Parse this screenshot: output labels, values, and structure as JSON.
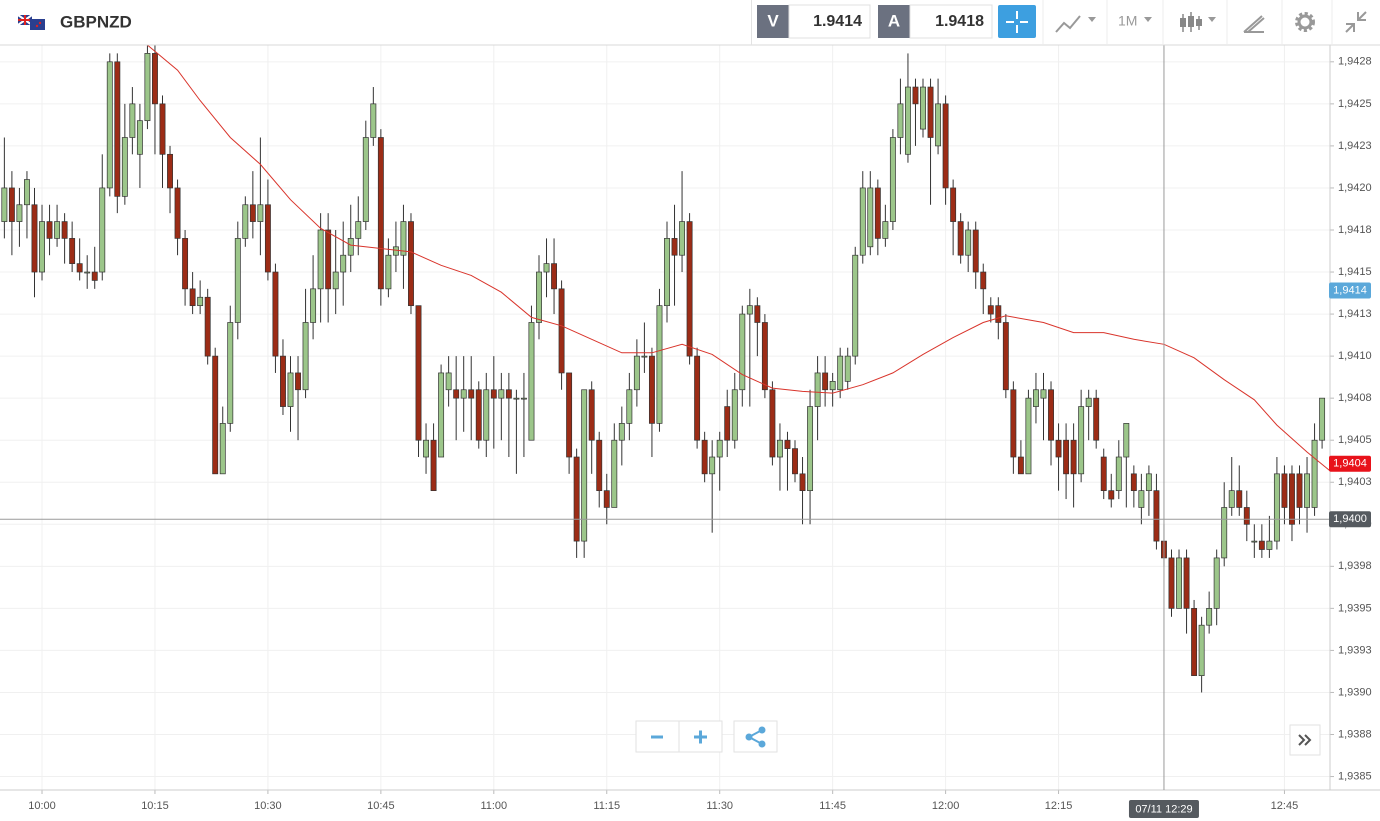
{
  "toolbar": {
    "symbol": "GBPNZD",
    "sell_label": "V",
    "sell_price": "1.9414",
    "buy_label": "A",
    "buy_price": "1.9418",
    "timeframe": "1M"
  },
  "chart_data": {
    "type": "candlestick",
    "up_color": "#9cc68a",
    "down_color": "#9c2c16",
    "grid": true,
    "xlim": [
      594.42,
      771.05
    ],
    "xticks": [
      {
        "value": 600,
        "label": "10:00"
      },
      {
        "value": 615,
        "label": "10:15"
      },
      {
        "value": 630,
        "label": "10:30"
      },
      {
        "value": 645,
        "label": "10:45"
      },
      {
        "value": 660,
        "label": "11:00"
      },
      {
        "value": 675,
        "label": "11:15"
      },
      {
        "value": 690,
        "label": "11:30"
      },
      {
        "value": 705,
        "label": "11:45"
      },
      {
        "value": 720,
        "label": "12:00"
      },
      {
        "value": 735,
        "label": "12:15"
      },
      {
        "value": 765,
        "label": "12:45"
      }
    ],
    "ylim": [
      1.93842,
      1.94285
    ],
    "yticks": [
      {
        "value": 1.94275,
        "label": "1,9428"
      },
      {
        "value": 1.9425,
        "label": "1,9425"
      },
      {
        "value": 1.94225,
        "label": "1,9423"
      },
      {
        "value": 1.942,
        "label": "1,9420"
      },
      {
        "value": 1.94175,
        "label": "1,9418"
      },
      {
        "value": 1.9415,
        "label": "1,9415"
      },
      {
        "value": 1.94125,
        "label": "1,9413"
      },
      {
        "value": 1.941,
        "label": "1,9410"
      },
      {
        "value": 1.94075,
        "label": "1,9408"
      },
      {
        "value": 1.9405,
        "label": "1,9405"
      },
      {
        "value": 1.94025,
        "label": "1,9403"
      },
      {
        "value": 1.94,
        "label": "1,9400"
      },
      {
        "value": 1.93975,
        "label": "1,9398"
      },
      {
        "value": 1.9395,
        "label": "1,9395"
      },
      {
        "value": 1.93925,
        "label": "1,9393"
      },
      {
        "value": 1.939,
        "label": "1,9390"
      },
      {
        "value": 1.93875,
        "label": "1,9388"
      },
      {
        "value": 1.9385,
        "label": "1,9385"
      }
    ],
    "x": [
      595,
      596,
      597,
      598,
      599,
      600,
      601,
      602,
      603,
      604,
      605,
      606,
      607,
      608,
      609,
      610,
      611,
      612,
      613,
      614,
      615,
      616,
      617,
      618,
      619,
      620,
      621,
      622,
      623,
      624,
      625,
      626,
      627,
      628,
      629,
      630,
      631,
      632,
      633,
      634,
      635,
      636,
      637,
      638,
      639,
      640,
      641,
      642,
      643,
      644,
      645,
      646,
      647,
      648,
      649,
      650,
      651,
      652,
      653,
      654,
      655,
      656,
      657,
      658,
      659,
      660,
      661,
      662,
      663,
      664,
      665,
      666,
      667,
      668,
      669,
      670,
      671,
      672,
      673,
      674,
      675,
      676,
      677,
      678,
      679,
      680,
      681,
      682,
      683,
      684,
      685,
      686,
      687,
      688,
      689,
      690,
      691,
      692,
      693,
      694,
      695,
      696,
      697,
      698,
      699,
      700,
      701,
      702,
      703,
      704,
      705,
      706,
      707,
      708,
      709,
      710,
      711,
      712,
      713,
      714,
      715,
      716,
      717,
      718,
      719,
      720,
      721,
      722,
      723,
      724,
      725,
      726,
      727,
      728,
      729,
      730,
      731,
      732,
      733,
      734,
      735,
      736,
      737,
      738,
      739,
      740,
      741,
      742,
      743,
      744,
      745,
      746,
      747,
      748,
      749,
      750,
      751,
      752,
      753,
      754,
      755,
      756,
      757,
      758,
      759,
      760,
      761,
      762,
      763,
      764,
      765,
      766,
      767,
      768,
      769,
      770
    ],
    "open": [
      1.9418,
      1.942,
      1.9418,
      1.9419,
      1.9419,
      1.9415,
      1.9418,
      1.9417,
      1.9418,
      1.9417,
      1.94155,
      1.9415,
      1.9415,
      1.9415,
      1.942,
      1.94275,
      1.94195,
      1.9423,
      1.9422,
      1.9424,
      1.9428,
      1.9425,
      1.9422,
      1.942,
      1.9417,
      1.9414,
      1.9413,
      1.94135,
      1.941,
      1.9403,
      1.9406,
      1.9412,
      1.9417,
      1.9419,
      1.9418,
      1.9419,
      1.9415,
      1.941,
      1.9407,
      1.9409,
      1.9408,
      1.9412,
      1.9414,
      1.94175,
      1.9414,
      1.9415,
      1.9416,
      1.9417,
      1.9418,
      1.9423,
      1.9423,
      1.9414,
      1.9416,
      1.9416,
      1.9418,
      1.9413,
      1.9404,
      1.9405,
      1.9404,
      1.9408,
      1.9408,
      1.94075,
      1.9408,
      1.9408,
      1.9405,
      1.9408,
      1.94075,
      1.9408,
      1.94075,
      1.94075,
      1.9405,
      1.9412,
      1.9415,
      1.94155,
      1.9414,
      1.9409,
      1.9404,
      1.9399,
      1.9408,
      1.9405,
      1.9402,
      1.9401,
      1.9405,
      1.9406,
      1.9408,
      1.941,
      1.941,
      1.9406,
      1.9413,
      1.9417,
      1.9416,
      1.9418,
      1.941,
      1.9405,
      1.9403,
      1.9404,
      1.9407,
      1.9405,
      1.9408,
      1.94125,
      1.9413,
      1.9412,
      1.9408,
      1.9404,
      1.9405,
      1.94045,
      1.9403,
      1.9402,
      1.9407,
      1.9409,
      1.9408,
      1.9408,
      1.94085,
      1.941,
      1.9416,
      1.94165,
      1.942,
      1.9417,
      1.9418,
      1.9423,
      1.9422,
      1.9426,
      1.94235,
      1.9426,
      1.94225,
      1.9425,
      1.942,
      1.9418,
      1.9416,
      1.94175,
      1.9415,
      1.9413,
      1.9413,
      1.9412,
      1.9408,
      1.9404,
      1.9403,
      1.9407,
      1.94075,
      1.9408,
      1.9405,
      1.9405,
      1.9405,
      1.9403,
      1.9407,
      1.94075,
      1.9404,
      1.9402,
      1.9402,
      1.9404,
      1.9403,
      1.9401,
      1.9402,
      1.9402,
      1.9399,
      1.9398,
      1.9395,
      1.9398,
      1.9395,
      1.9391,
      1.9394,
      1.9395,
      1.9398,
      1.9401,
      1.9402,
      1.9401,
      1.9399,
      1.9399,
      1.93985,
      1.9399,
      1.9403,
      1.9403,
      1.9403,
      1.9401,
      1.9401,
      1.9405
    ],
    "high": [
      1.9423,
      1.9421,
      1.942,
      1.9421,
      1.942,
      1.9419,
      1.9419,
      1.9419,
      1.94185,
      1.9418,
      1.9417,
      1.9416,
      1.94165,
      1.9422,
      1.9428,
      1.9428,
      1.9425,
      1.9426,
      1.9425,
      1.94285,
      1.94285,
      1.94255,
      1.94225,
      1.94205,
      1.94175,
      1.9415,
      1.94145,
      1.9414,
      1.94105,
      1.9407,
      1.9413,
      1.9418,
      1.94195,
      1.9421,
      1.9423,
      1.94205,
      1.94155,
      1.9411,
      1.941,
      1.941,
      1.9414,
      1.9416,
      1.94185,
      1.94185,
      1.94175,
      1.9418,
      1.9419,
      1.94195,
      1.9424,
      1.9426,
      1.94235,
      1.9417,
      1.9418,
      1.9419,
      1.94185,
      1.9413,
      1.9406,
      1.9406,
      1.94095,
      1.941,
      1.941,
      1.941,
      1.941,
      1.94085,
      1.9409,
      1.941,
      1.9409,
      1.9409,
      1.9408,
      1.9409,
      1.9413,
      1.9416,
      1.9417,
      1.9417,
      1.94145,
      1.9409,
      1.94045,
      1.9408,
      1.94085,
      1.94055,
      1.9403,
      1.9406,
      1.9407,
      1.9409,
      1.9411,
      1.9412,
      1.94105,
      1.9414,
      1.9418,
      1.9419,
      1.9421,
      1.94185,
      1.94105,
      1.94055,
      1.9405,
      1.94055,
      1.9408,
      1.9409,
      1.9413,
      1.9414,
      1.94135,
      1.94125,
      1.94085,
      1.9406,
      1.94055,
      1.9405,
      1.9404,
      1.9408,
      1.941,
      1.941,
      1.9409,
      1.94105,
      1.94105,
      1.94165,
      1.9421,
      1.9421,
      1.94205,
      1.9419,
      1.94235,
      1.94265,
      1.9428,
      1.94265,
      1.94265,
      1.94265,
      1.94265,
      1.94255,
      1.94205,
      1.94185,
      1.9418,
      1.9418,
      1.94155,
      1.94135,
      1.94135,
      1.94125,
      1.94085,
      1.9405,
      1.9408,
      1.9409,
      1.9409,
      1.94085,
      1.9406,
      1.9406,
      1.9406,
      1.9408,
      1.9408,
      1.9408,
      1.94045,
      1.9403,
      1.9405,
      1.9406,
      1.94035,
      1.9403,
      1.94035,
      1.9403,
      1.94,
      1.93985,
      1.93985,
      1.93985,
      1.93955,
      1.93945,
      1.9396,
      1.93985,
      1.94025,
      1.9404,
      1.94035,
      1.9402,
      1.94,
      1.94,
      1.94005,
      1.9404,
      1.94035,
      1.94035,
      1.94035,
      1.9404,
      1.9406,
      1.94075
    ],
    "low": [
      1.9417,
      1.9416,
      1.94165,
      1.9417,
      1.94135,
      1.94145,
      1.9416,
      1.94165,
      1.94155,
      1.9415,
      1.94145,
      1.9414,
      1.9414,
      1.94145,
      1.94195,
      1.94185,
      1.9419,
      1.9422,
      1.942,
      1.94235,
      1.9422,
      1.942,
      1.94185,
      1.9416,
      1.9413,
      1.94125,
      1.94125,
      1.94095,
      1.9403,
      1.9403,
      1.94055,
      1.9411,
      1.94165,
      1.9417,
      1.9416,
      1.94145,
      1.9409,
      1.94065,
      1.94055,
      1.9405,
      1.94075,
      1.9411,
      1.9412,
      1.9412,
      1.94125,
      1.9413,
      1.9415,
      1.9416,
      1.94175,
      1.94225,
      1.9413,
      1.94135,
      1.9415,
      1.9414,
      1.94125,
      1.9404,
      1.9403,
      1.9402,
      1.9404,
      1.9407,
      1.9405,
      1.94055,
      1.9405,
      1.94045,
      1.9404,
      1.94045,
      1.9405,
      1.9404,
      1.9403,
      1.9404,
      1.9405,
      1.9411,
      1.94135,
      1.94125,
      1.9408,
      1.9403,
      1.9398,
      1.9398,
      1.9403,
      1.9401,
      1.94,
      1.9401,
      1.94035,
      1.9405,
      1.9407,
      1.9409,
      1.9404,
      1.94055,
      1.9412,
      1.9413,
      1.9415,
      1.94095,
      1.94045,
      1.94025,
      1.93995,
      1.9402,
      1.9404,
      1.94045,
      1.9407,
      1.9407,
      1.941,
      1.94075,
      1.94035,
      1.9402,
      1.9402,
      1.94025,
      1.94,
      1.94,
      1.9405,
      1.9407,
      1.9407,
      1.94075,
      1.9408,
      1.94095,
      1.94155,
      1.9416,
      1.9416,
      1.94165,
      1.94175,
      1.9422,
      1.94215,
      1.94225,
      1.9423,
      1.9419,
      1.9422,
      1.9419,
      1.9416,
      1.94155,
      1.9415,
      1.9414,
      1.94125,
      1.9412,
      1.9411,
      1.94075,
      1.9403,
      1.9403,
      1.9403,
      1.9406,
      1.9405,
      1.94035,
      1.9402,
      1.94015,
      1.9401,
      1.94025,
      1.9405,
      1.94045,
      1.94015,
      1.9401,
      1.94015,
      1.9401,
      1.9401,
      1.94,
      1.94005,
      1.93985,
      1.93975,
      1.93945,
      1.9395,
      1.93935,
      1.9391,
      1.939,
      1.93935,
      1.9394,
      1.93975,
      1.94005,
      1.94005,
      1.9399,
      1.9398,
      1.9398,
      1.9398,
      1.93985,
      1.94,
      1.9399,
      1.94,
      1.93995,
      1.94005,
      1.94045
    ],
    "close": [
      1.942,
      1.9418,
      1.9419,
      1.94205,
      1.9415,
      1.9418,
      1.9417,
      1.9418,
      1.9417,
      1.94155,
      1.9415,
      1.9415,
      1.94145,
      1.942,
      1.94275,
      1.94195,
      1.9423,
      1.9425,
      1.9424,
      1.9428,
      1.9425,
      1.9422,
      1.942,
      1.9417,
      1.9414,
      1.9413,
      1.94135,
      1.941,
      1.9403,
      1.9406,
      1.9412,
      1.9417,
      1.9419,
      1.9418,
      1.9419,
      1.9415,
      1.941,
      1.9407,
      1.9409,
      1.9408,
      1.9412,
      1.9414,
      1.94175,
      1.9414,
      1.9415,
      1.9416,
      1.9417,
      1.9418,
      1.9423,
      1.9425,
      1.9414,
      1.9416,
      1.94165,
      1.9418,
      1.9413,
      1.9405,
      1.9405,
      1.9402,
      1.9409,
      1.9409,
      1.94075,
      1.9408,
      1.94075,
      1.9405,
      1.9408,
      1.94075,
      1.9408,
      1.94075,
      1.94075,
      1.94075,
      1.9412,
      1.9415,
      1.94155,
      1.9414,
      1.9409,
      1.9404,
      1.9399,
      1.9408,
      1.9405,
      1.9402,
      1.9401,
      1.9405,
      1.9406,
      1.9408,
      1.941,
      1.941,
      1.9406,
      1.9413,
      1.9417,
      1.9416,
      1.9418,
      1.941,
      1.9405,
      1.9403,
      1.9404,
      1.9405,
      1.9405,
      1.9408,
      1.94125,
      1.9413,
      1.9412,
      1.9408,
      1.9404,
      1.9405,
      1.94045,
      1.9403,
      1.9402,
      1.9407,
      1.9409,
      1.9408,
      1.94085,
      1.941,
      1.941,
      1.9416,
      1.942,
      1.942,
      1.9417,
      1.9418,
      1.9423,
      1.9425,
      1.9426,
      1.9425,
      1.9426,
      1.9423,
      1.9425,
      1.942,
      1.9418,
      1.9416,
      1.94175,
      1.9415,
      1.9414,
      1.94125,
      1.9412,
      1.9408,
      1.9404,
      1.9403,
      1.94075,
      1.9408,
      1.9408,
      1.9405,
      1.9404,
      1.9403,
      1.9403,
      1.9407,
      1.94075,
      1.9405,
      1.9402,
      1.94015,
      1.9404,
      1.9406,
      1.9402,
      1.9402,
      1.9403,
      1.9399,
      1.9398,
      1.9395,
      1.9398,
      1.9395,
      1.9391,
      1.9394,
      1.9395,
      1.9398,
      1.9401,
      1.9402,
      1.9401,
      1.94,
      1.9399,
      1.93985,
      1.9399,
      1.9403,
      1.9401,
      1.94,
      1.9401,
      1.9403,
      1.9405,
      1.94075
    ],
    "ma": {
      "color": "#d9342b",
      "x": [
        614,
        618,
        621,
        625,
        629,
        633,
        637,
        641,
        645,
        649,
        653,
        657,
        661,
        665,
        669,
        673,
        677,
        681,
        685,
        689,
        693,
        697,
        701,
        705,
        709,
        713,
        717,
        721,
        725,
        728,
        733,
        737,
        741,
        745,
        749,
        753,
        757,
        761,
        764,
        768,
        771
      ],
      "values": [
        1.94285,
        1.9427,
        1.94252,
        1.9423,
        1.94214,
        1.94193,
        1.94176,
        1.94166,
        1.94164,
        1.94162,
        1.94154,
        1.94148,
        1.94138,
        1.94123,
        1.94118,
        1.9411,
        1.94102,
        1.94102,
        1.94107,
        1.94101,
        1.94089,
        1.94081,
        1.94079,
        1.94078,
        1.94083,
        1.9409,
        1.94101,
        1.94111,
        1.9412,
        1.94124,
        1.9412,
        1.94114,
        1.94114,
        1.9411,
        1.94107,
        1.94099,
        1.94086,
        1.94074,
        1.94059,
        1.94043,
        1.94032
      ]
    },
    "price_markers": [
      {
        "value": 1.94139,
        "label": "1,9414",
        "color": "#5ba8da"
      },
      {
        "value": 1.94036,
        "label": "1,9404",
        "color": "#e8121a"
      }
    ],
    "crosshair": {
      "x": 749,
      "x_label": "07/11 12:29",
      "y": 1.94003,
      "y_label": "1,9400",
      "color": "#555a5f"
    }
  }
}
